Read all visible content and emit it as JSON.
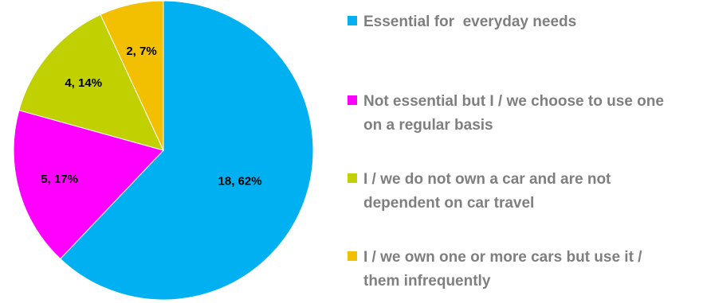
{
  "chart_data": {
    "type": "pie",
    "title": "",
    "slices": [
      {
        "label": "Essential for  everyday needs",
        "value": 18,
        "percent": 62,
        "data_label": "18, 62%",
        "color": "#00b0f0"
      },
      {
        "label": "Not essential but I / we choose to use one on a regular basis",
        "value": 5,
        "percent": 17,
        "data_label": "5, 17%",
        "color": "#ff00ff"
      },
      {
        "label": "I / we do not own a car and are not dependent on car travel",
        "value": 4,
        "percent": 14,
        "data_label": "4, 14%",
        "color": "#c0d000"
      },
      {
        "label": "I / we own one or more cars but use it / them infrequently",
        "value": 2,
        "percent": 7,
        "data_label": "2, 7%",
        "color": "#f2c000"
      }
    ],
    "start_angle_deg": 0,
    "direction": "clockwise",
    "legend_position": "right"
  }
}
